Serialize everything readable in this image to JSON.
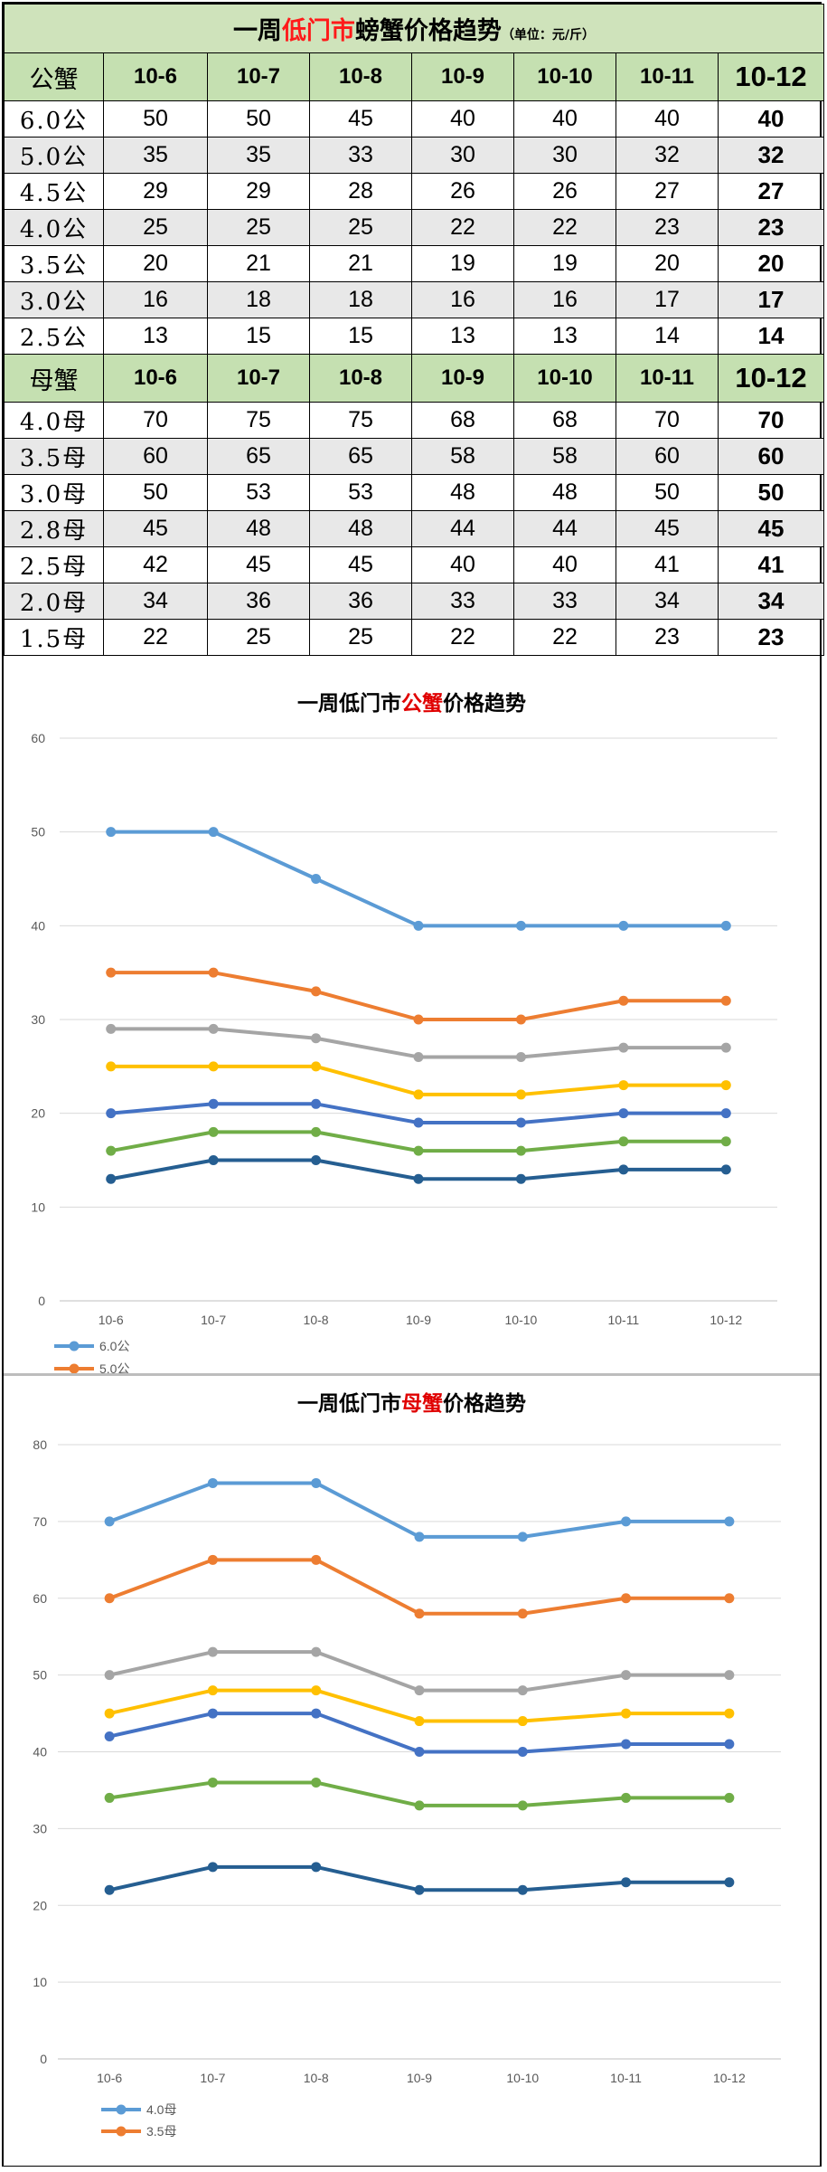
{
  "table": {
    "title_prefix": "一周",
    "title_red": "低门市",
    "title_suffix": "螃蟹价格趋势",
    "title_unit": "（单位：元/斤）",
    "male_header": "公蟹",
    "female_header": "母蟹",
    "dates": [
      "10-6",
      "10-7",
      "10-8",
      "10-9",
      "10-10",
      "10-11",
      "10-12"
    ],
    "male_rows": [
      {
        "size": "6.0公",
        "prices": [
          "50",
          "50",
          "45",
          "40",
          "40",
          "40",
          "40"
        ]
      },
      {
        "size": "5.0公",
        "prices": [
          "35",
          "35",
          "33",
          "30",
          "30",
          "32",
          "32"
        ]
      },
      {
        "size": "4.5公",
        "prices": [
          "29",
          "29",
          "28",
          "26",
          "26",
          "27",
          "27"
        ]
      },
      {
        "size": "4.0公",
        "prices": [
          "25",
          "25",
          "25",
          "22",
          "22",
          "23",
          "23"
        ]
      },
      {
        "size": "3.5公",
        "prices": [
          "20",
          "21",
          "21",
          "19",
          "19",
          "20",
          "20"
        ]
      },
      {
        "size": "3.0公",
        "prices": [
          "16",
          "18",
          "18",
          "16",
          "16",
          "17",
          "17"
        ]
      },
      {
        "size": "2.5公",
        "prices": [
          "13",
          "15",
          "15",
          "13",
          "13",
          "14",
          "14"
        ]
      }
    ],
    "female_rows": [
      {
        "size": "4.0母",
        "prices": [
          "70",
          "75",
          "75",
          "68",
          "68",
          "70",
          "70"
        ]
      },
      {
        "size": "3.5母",
        "prices": [
          "60",
          "65",
          "65",
          "58",
          "58",
          "60",
          "60"
        ]
      },
      {
        "size": "3.0母",
        "prices": [
          "50",
          "53",
          "53",
          "48",
          "48",
          "50",
          "50"
        ]
      },
      {
        "size": "2.8母",
        "prices": [
          "45",
          "48",
          "48",
          "44",
          "44",
          "45",
          "45"
        ]
      },
      {
        "size": "2.5母",
        "prices": [
          "42",
          "45",
          "45",
          "40",
          "40",
          "41",
          "41"
        ]
      },
      {
        "size": "2.0母",
        "prices": [
          "34",
          "36",
          "36",
          "33",
          "33",
          "34",
          "34"
        ]
      },
      {
        "size": "1.5母",
        "prices": [
          "22",
          "25",
          "25",
          "22",
          "22",
          "23",
          "23"
        ]
      }
    ]
  },
  "chart_data": [
    {
      "type": "line",
      "title_prefix": "一周低门市",
      "title_red": "公蟹",
      "title_suffix": "价格趋势",
      "categories": [
        "10-6",
        "10-7",
        "10-8",
        "10-9",
        "10-10",
        "10-11",
        "10-12"
      ],
      "ylim": [
        0,
        60
      ],
      "yticks": [
        0,
        10,
        20,
        30,
        40,
        50,
        60
      ],
      "grid": true,
      "legend": "bottom-left",
      "series": [
        {
          "name": "6.0公",
          "color": "#5b9bd5",
          "values": [
            50,
            50,
            45,
            40,
            40,
            40,
            40
          ]
        },
        {
          "name": "5.0公",
          "color": "#ed7d31",
          "values": [
            35,
            35,
            33,
            30,
            30,
            32,
            32
          ]
        },
        {
          "color": "#a5a5a5",
          "values": [
            29,
            29,
            28,
            26,
            26,
            27,
            27
          ]
        },
        {
          "color": "#ffc000",
          "values": [
            25,
            25,
            25,
            22,
            22,
            23,
            23
          ]
        },
        {
          "color": "#4472c4",
          "values": [
            20,
            21,
            21,
            19,
            19,
            20,
            20
          ]
        },
        {
          "color": "#70ad47",
          "values": [
            16,
            18,
            18,
            16,
            16,
            17,
            17
          ]
        },
        {
          "color": "#255e91",
          "values": [
            13,
            15,
            15,
            13,
            13,
            14,
            14
          ]
        }
      ]
    },
    {
      "type": "line",
      "title_prefix": "一周低门市",
      "title_red": "母蟹",
      "title_suffix": "价格趋势",
      "categories": [
        "10-6",
        "10-7",
        "10-8",
        "10-9",
        "10-10",
        "10-11",
        "10-12"
      ],
      "ylim": [
        0,
        80
      ],
      "yticks": [
        0,
        10,
        20,
        30,
        40,
        50,
        60,
        70,
        80
      ],
      "grid": true,
      "legend": "bottom-left",
      "series": [
        {
          "name": "4.0母",
          "color": "#5b9bd5",
          "values": [
            70,
            75,
            75,
            68,
            68,
            70,
            70
          ]
        },
        {
          "name": "3.5母",
          "color": "#ed7d31",
          "values": [
            60,
            65,
            65,
            58,
            58,
            60,
            60
          ]
        },
        {
          "color": "#a5a5a5",
          "values": [
            50,
            53,
            53,
            48,
            48,
            50,
            50
          ]
        },
        {
          "color": "#ffc000",
          "values": [
            45,
            48,
            48,
            44,
            44,
            45,
            45
          ]
        },
        {
          "color": "#4472c4",
          "values": [
            42,
            45,
            45,
            40,
            40,
            41,
            41
          ]
        },
        {
          "color": "#70ad47",
          "values": [
            34,
            36,
            36,
            33,
            33,
            34,
            34
          ]
        },
        {
          "color": "#255e91",
          "values": [
            22,
            25,
            25,
            22,
            22,
            23,
            23
          ]
        }
      ]
    }
  ]
}
